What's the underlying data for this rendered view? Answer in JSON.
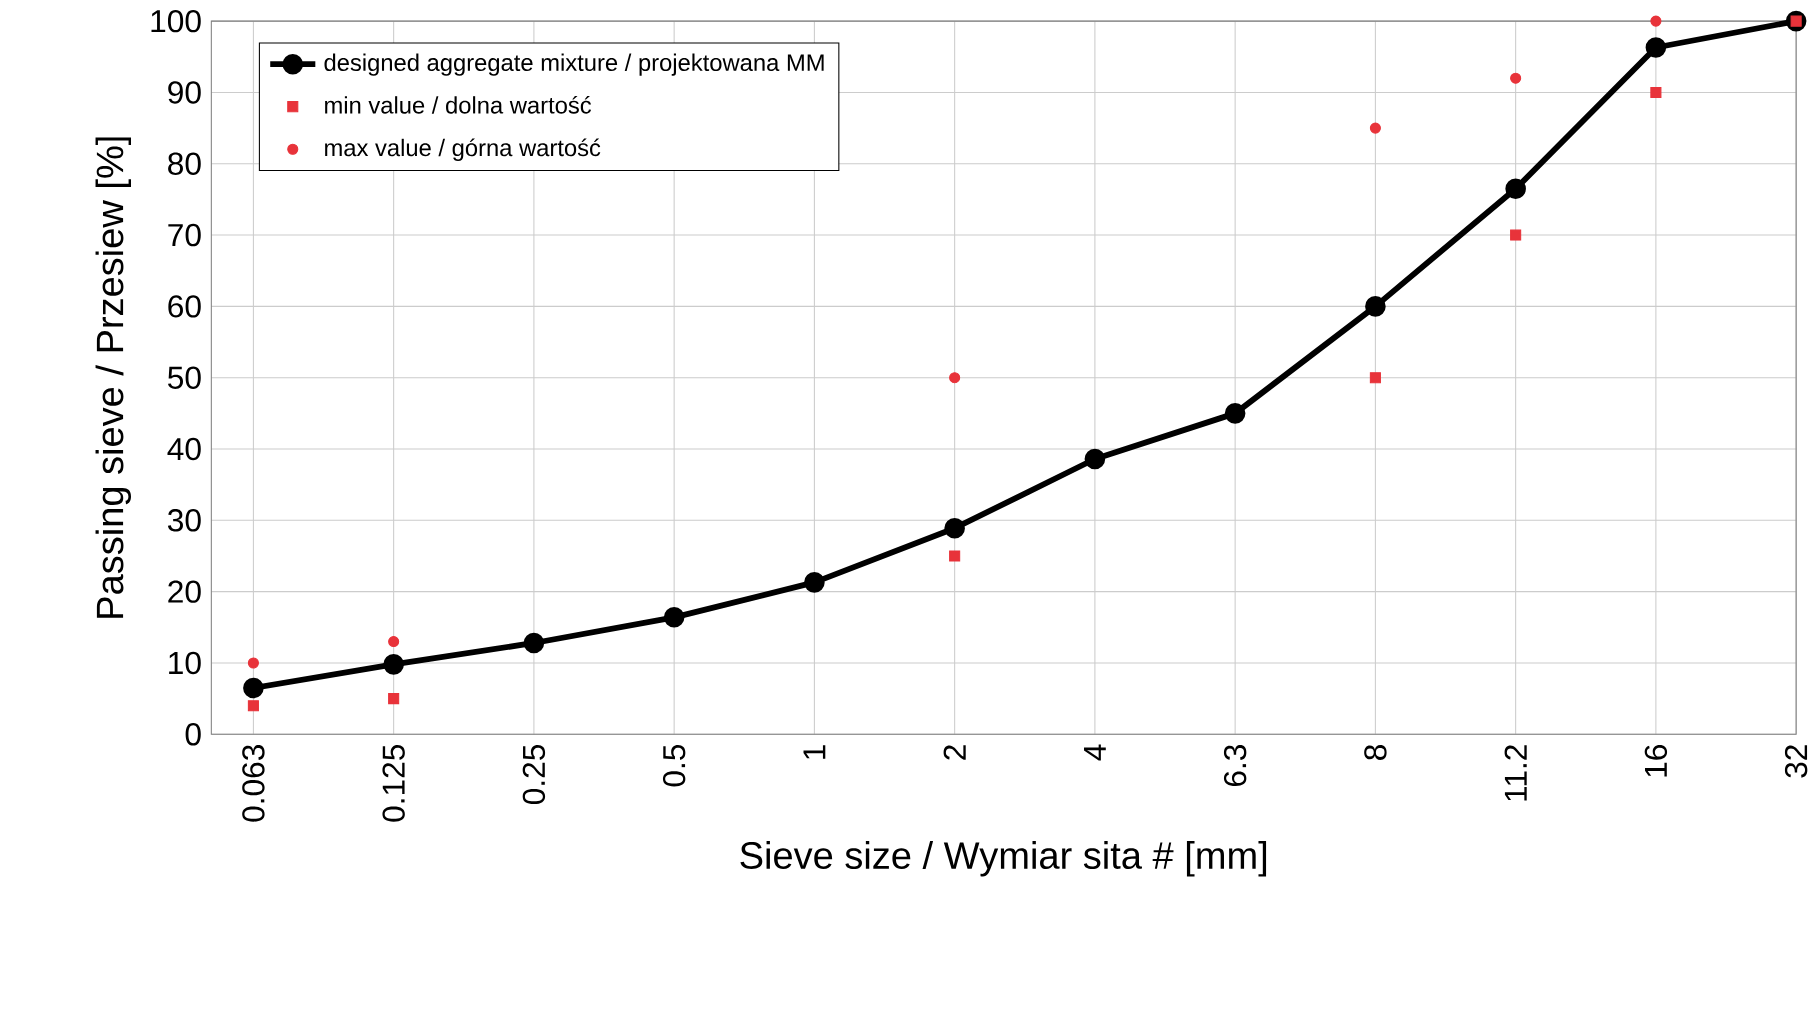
{
  "chart_data": {
    "type": "line",
    "xlabel": "Sieve size / Wymiar sita # [mm]",
    "ylabel": "Passing sieve / Przesiew [%]",
    "categories": [
      "0.063",
      "0.125",
      "0.25",
      "0.5",
      "1",
      "2",
      "4",
      "6.3",
      "8",
      "11.2",
      "16",
      "32"
    ],
    "ylim": [
      0,
      100
    ],
    "yticks": [
      0,
      10,
      20,
      30,
      40,
      50,
      60,
      70,
      80,
      90,
      100
    ],
    "grid": true,
    "legend": "top left",
    "series": [
      {
        "name": "designed aggregate mixture / projektowana MM",
        "color": "#000000",
        "marker": "circle",
        "values": [
          6.5,
          9.8,
          12.8,
          16.4,
          21.3,
          28.9,
          38.6,
          45,
          60,
          76.5,
          96.3,
          100
        ]
      },
      {
        "name": "min value / dolna wartość",
        "type": "scatter",
        "color": "#e8333a",
        "marker": "square",
        "values": [
          4,
          5,
          null,
          null,
          null,
          25,
          null,
          null,
          50,
          70,
          90,
          100
        ]
      },
      {
        "name": "max value / górna wartość",
        "type": "scatter",
        "color": "#e8333a",
        "marker": "circle",
        "values": [
          10,
          13,
          null,
          null,
          null,
          50,
          null,
          null,
          85,
          92,
          100,
          null
        ]
      }
    ]
  }
}
